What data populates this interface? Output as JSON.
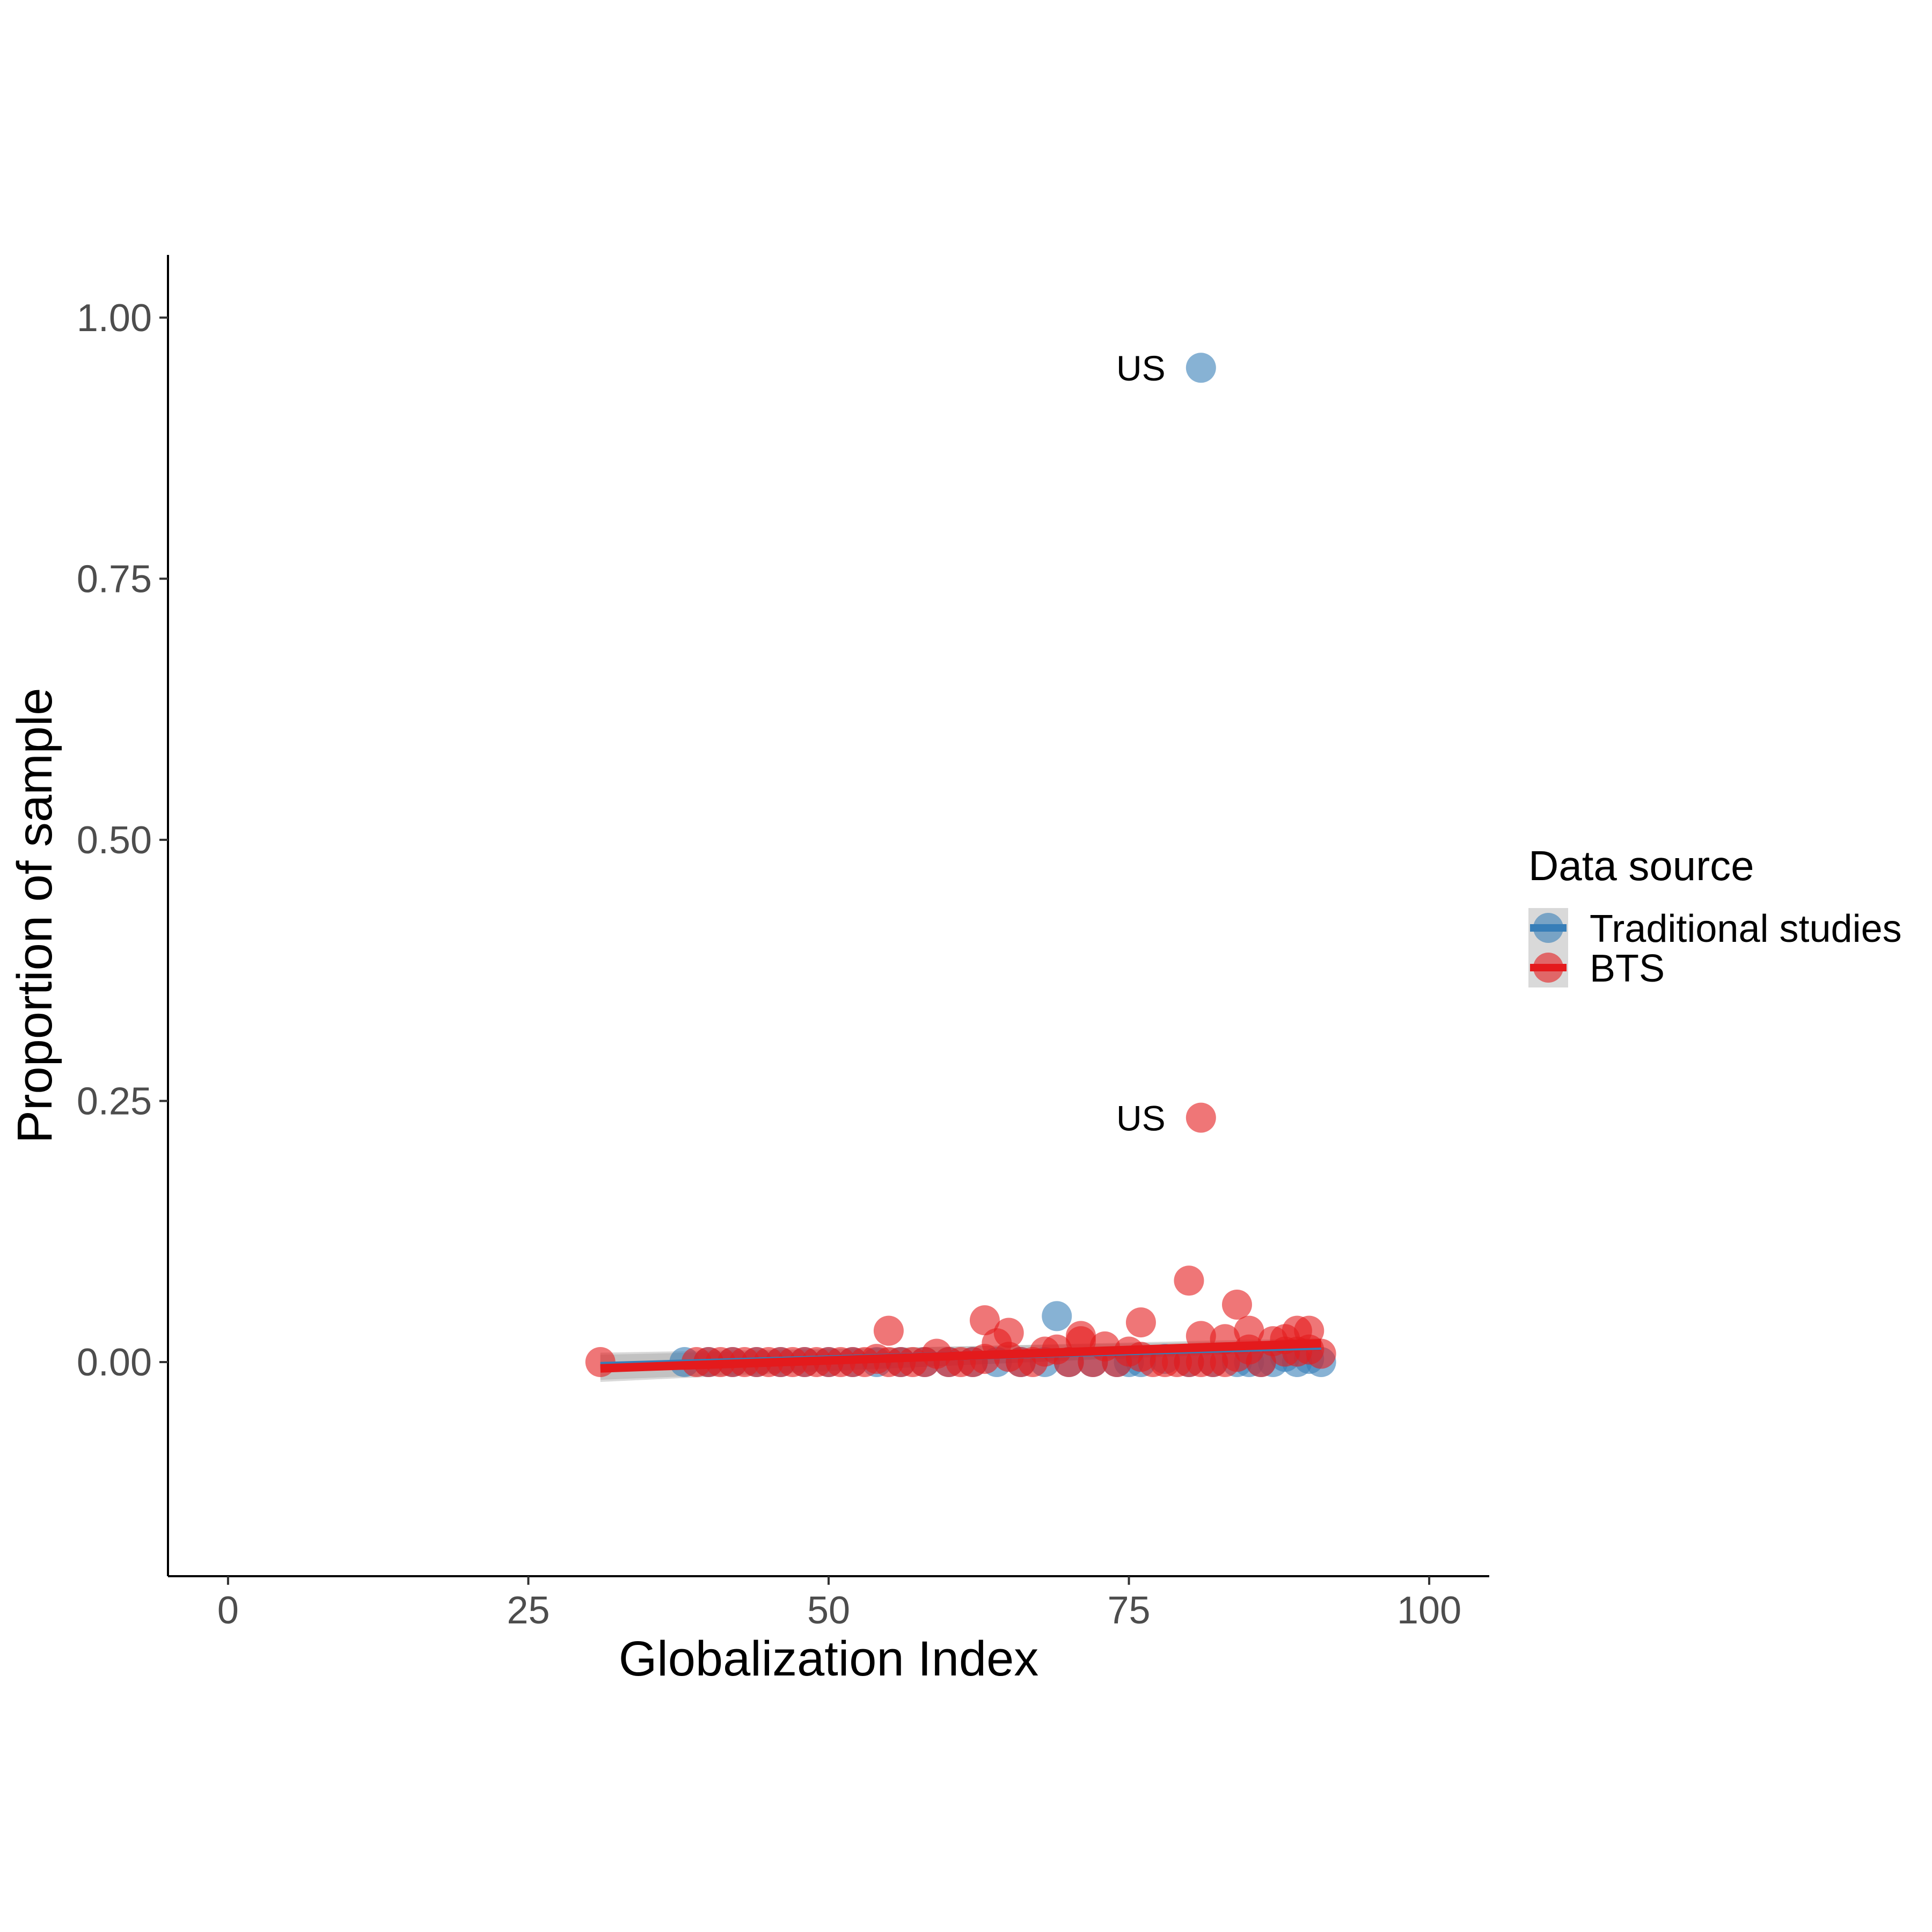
{
  "chart_data": {
    "type": "scatter",
    "title": "",
    "xlabel": "Globalization Index",
    "ylabel": "Proportion of sample",
    "xlim": [
      -5,
      105
    ],
    "ylim": [
      -0.205,
      1.06
    ],
    "x_ticks": [
      0,
      25,
      50,
      75,
      100
    ],
    "x_tick_labels": [
      "0",
      "25",
      "50",
      "75",
      "100"
    ],
    "y_ticks": [
      0,
      0.25,
      0.5,
      0.75,
      1
    ],
    "y_tick_labels": [
      "0.00",
      "0.25",
      "0.50",
      "0.75",
      "1.00"
    ],
    "grid": false,
    "legend": {
      "title": "Data source",
      "placement": "right",
      "entries": [
        {
          "label": "Traditional studies",
          "color": "#377EB8"
        },
        {
          "label": "BTS",
          "color": "#E41A1C"
        }
      ]
    },
    "series": [
      {
        "name": "Traditional studies",
        "color": "#377EB8",
        "x": [
          38,
          40,
          42,
          44,
          46,
          48,
          50,
          52,
          54,
          56,
          58,
          60,
          62,
          64,
          66,
          68,
          69,
          70,
          72,
          74,
          75,
          76,
          78,
          80,
          82,
          84,
          85,
          86,
          87,
          88,
          89,
          90,
          91,
          81
        ],
        "y": [
          0,
          0,
          0,
          0,
          0,
          0,
          0,
          0,
          0,
          0,
          0,
          0,
          0,
          0,
          0,
          0,
          0.044,
          0,
          0,
          0,
          0,
          0,
          0.003,
          0,
          0,
          0,
          0,
          0,
          0,
          0.005,
          0,
          0.003,
          0,
          0.952
        ],
        "trend": {
          "x": [
            31,
            91
          ],
          "y": [
            -0.004,
            0.016
          ]
        }
      },
      {
        "name": "BTS",
        "color": "#E41A1C",
        "x": [
          31,
          39,
          40,
          41,
          42,
          43,
          44,
          45,
          46,
          47,
          48,
          49,
          50,
          51,
          52,
          53,
          54,
          55,
          55,
          56,
          57,
          58,
          59,
          60,
          61,
          62,
          63,
          63,
          64,
          65,
          65,
          66,
          67,
          68,
          69,
          70,
          71,
          71,
          72,
          73,
          74,
          75,
          76,
          76,
          77,
          78,
          79,
          80,
          80,
          81,
          81,
          82,
          83,
          83,
          84,
          84,
          85,
          85,
          86,
          87,
          88,
          88,
          89,
          89,
          90,
          90,
          91,
          81
        ],
        "y": [
          0,
          0,
          0,
          0,
          0,
          0,
          0,
          0,
          0,
          0,
          0,
          0,
          0,
          0,
          0,
          0,
          0.003,
          0.03,
          0,
          0,
          0,
          0,
          0.008,
          0,
          0,
          0,
          0.04,
          0.003,
          0.018,
          0.028,
          0.005,
          0,
          0,
          0.01,
          0.012,
          0,
          0.025,
          0.02,
          0,
          0.015,
          0,
          0.01,
          0.038,
          0.005,
          0,
          0,
          0,
          0.078,
          0,
          0.025,
          0,
          0,
          0.022,
          0,
          0.055,
          0.005,
          0.03,
          0.012,
          0,
          0.02,
          0.022,
          0.01,
          0.03,
          0.01,
          0.03,
          0.012,
          0.008,
          0.234
        ],
        "trend": {
          "x": [
            31,
            91
          ],
          "y": [
            -0.006,
            0.018
          ]
        }
      }
    ],
    "annotations": [
      {
        "text": "US",
        "x": 81,
        "y": 0.952
      },
      {
        "text": "US",
        "x": 81,
        "y": 0.234
      }
    ]
  }
}
